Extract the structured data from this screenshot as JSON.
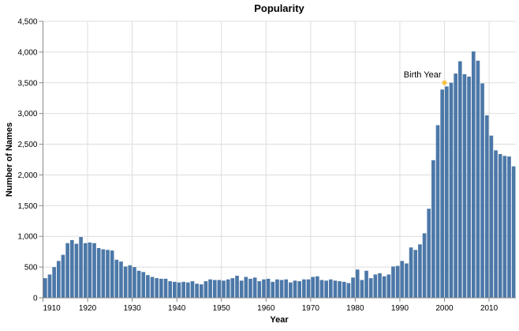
{
  "chart_data": {
    "type": "bar",
    "title": "Popularity",
    "x_label": "Year",
    "y_label": "Number of Names",
    "x": [
      1910,
      1911,
      1912,
      1913,
      1914,
      1915,
      1916,
      1917,
      1918,
      1919,
      1920,
      1921,
      1922,
      1923,
      1924,
      1925,
      1926,
      1927,
      1928,
      1929,
      1930,
      1931,
      1932,
      1933,
      1934,
      1935,
      1936,
      1937,
      1938,
      1939,
      1940,
      1941,
      1942,
      1943,
      1944,
      1945,
      1946,
      1947,
      1948,
      1949,
      1950,
      1951,
      1952,
      1953,
      1954,
      1955,
      1956,
      1957,
      1958,
      1959,
      1960,
      1961,
      1962,
      1963,
      1964,
      1965,
      1966,
      1967,
      1968,
      1969,
      1970,
      1971,
      1972,
      1973,
      1974,
      1975,
      1976,
      1977,
      1978,
      1979,
      1980,
      1981,
      1982,
      1983,
      1984,
      1985,
      1986,
      1987,
      1988,
      1989,
      1990,
      1991,
      1992,
      1993,
      1994,
      1995,
      1996,
      1997,
      1998,
      1999,
      2000,
      2001,
      2002,
      2003,
      2004,
      2005,
      2006,
      2007,
      2008,
      2009,
      2010,
      2011,
      2012,
      2013,
      2014,
      2015
    ],
    "values": [
      320,
      380,
      500,
      600,
      700,
      890,
      940,
      880,
      990,
      890,
      900,
      890,
      810,
      790,
      780,
      770,
      620,
      590,
      510,
      530,
      500,
      440,
      420,
      370,
      340,
      320,
      310,
      310,
      270,
      260,
      250,
      260,
      250,
      270,
      230,
      220,
      270,
      300,
      290,
      290,
      280,
      300,
      320,
      360,
      280,
      340,
      310,
      330,
      270,
      300,
      310,
      260,
      300,
      290,
      300,
      250,
      280,
      270,
      300,
      300,
      340,
      350,
      290,
      280,
      300,
      280,
      270,
      260,
      240,
      330,
      460,
      290,
      440,
      320,
      380,
      400,
      350,
      380,
      510,
      520,
      600,
      560,
      820,
      780,
      870,
      1050,
      1450,
      2240,
      2810,
      3390,
      3440,
      3500,
      3650,
      3850,
      3640,
      3600,
      4010,
      3860,
      3490,
      2970,
      2640,
      2400,
      2340,
      2310,
      2300,
      2140
    ],
    "color": "#4c78a8",
    "xlim": [
      1910,
      2016
    ],
    "xticks": [
      1910,
      1920,
      1930,
      1940,
      1950,
      1960,
      1970,
      1980,
      1990,
      2000,
      2010
    ],
    "ylim": [
      0,
      4500
    ],
    "yticks": [
      0,
      500,
      {
        "value": 1000,
        "label": "1,000"
      },
      {
        "value": 1500,
        "label": "1,500"
      },
      {
        "value": 2000,
        "label": "2,000"
      },
      {
        "value": 2500,
        "label": "2,500"
      },
      {
        "value": 3000,
        "label": "3,000"
      },
      {
        "value": 3500,
        "label": "3,500"
      },
      {
        "value": 4000,
        "label": "4,000"
      },
      {
        "value": 4500,
        "label": "4,500"
      }
    ],
    "grid": true,
    "annotation": {
      "label": "Birth Year",
      "x": 2000,
      "y": 3500,
      "color": "#f5c242"
    }
  }
}
